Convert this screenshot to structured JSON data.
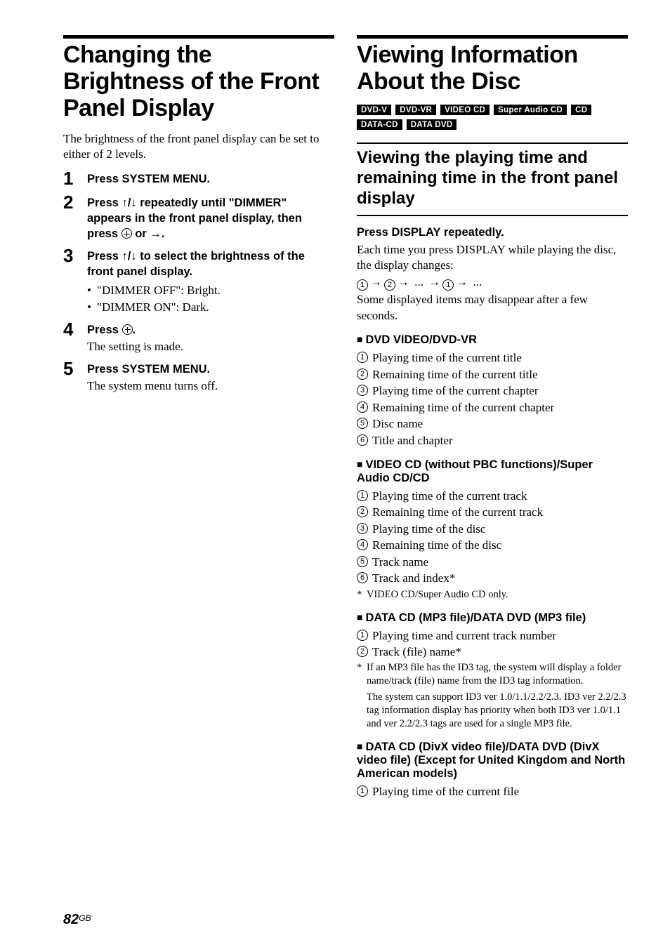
{
  "left": {
    "title": "Changing the Brightness of the Front Panel Display",
    "intro": "The brightness of the front panel display can be set to either of 2 levels.",
    "steps": {
      "s1": {
        "head": "Press SYSTEM MENU."
      },
      "s2": {
        "head_a": "Press ↑/↓ repeatedly until \"DIMMER\" appears in the front panel display, then press ",
        "head_b": " or →."
      },
      "s3": {
        "head": "Press ↑/↓ to select the brightness of the front panel display.",
        "b1": "\"DIMMER OFF\": Bright.",
        "b2": "\"DIMMER ON\": Dark."
      },
      "s4": {
        "head_a": "Press ",
        "head_b": ".",
        "note": "The setting is made."
      },
      "s5": {
        "head": "Press SYSTEM MENU.",
        "note": "The system menu turns off."
      }
    }
  },
  "right": {
    "title": "Viewing Information About the Disc",
    "badges": [
      "DVD-V",
      "DVD-VR",
      "VIDEO CD",
      "Super Audio CD",
      "CD",
      "DATA-CD",
      "DATA DVD"
    ],
    "sub": "Viewing the playing time and remaining time in the front panel display",
    "press_display": "Press DISPLAY repeatedly.",
    "press_desc1": "Each time you press DISPLAY while playing the disc, the display changes:",
    "press_desc2": "Some displayed items may disappear after a few seconds.",
    "dvd_head": "DVD VIDEO/DVD-VR",
    "dvd": {
      "i1": "Playing time of the current title",
      "i2": "Remaining time of the current title",
      "i3": "Playing time of the current chapter",
      "i4": "Remaining time of the current chapter",
      "i5": "Disc name",
      "i6": "Title and chapter"
    },
    "vcd_head": "VIDEO CD (without PBC functions)/Super Audio CD/CD",
    "vcd": {
      "i1": "Playing time of the current track",
      "i2": "Remaining time of the current track",
      "i3": "Playing time of the disc",
      "i4": "Remaining time of the disc",
      "i5": "Track name",
      "i6": "Track and index*"
    },
    "vcd_foot": "VIDEO CD/Super Audio CD only.",
    "mp3_head": "DATA CD (MP3 file)/DATA DVD (MP3 file)",
    "mp3": {
      "i1": "Playing time and current track number",
      "i2": "Track (file) name*"
    },
    "mp3_foot1": "If an MP3 file has the ID3 tag, the system will display a folder name/track (file) name from the ID3 tag information.",
    "mp3_foot2": "The system can support ID3 ver 1.0/1.1/2.2/2.3. ID3 ver 2.2/2.3 tag information display has priority when both ID3 ver 1.0/1.1 and ver 2.2/2.3 tags are used for a single MP3 file.",
    "divx_head": "DATA CD (DivX video file)/DATA DVD (DivX video file) (Except for United Kingdom and North American models)",
    "divx": {
      "i1": "Playing time of the current file"
    }
  },
  "page": {
    "num": "82",
    "suffix": "GB"
  }
}
